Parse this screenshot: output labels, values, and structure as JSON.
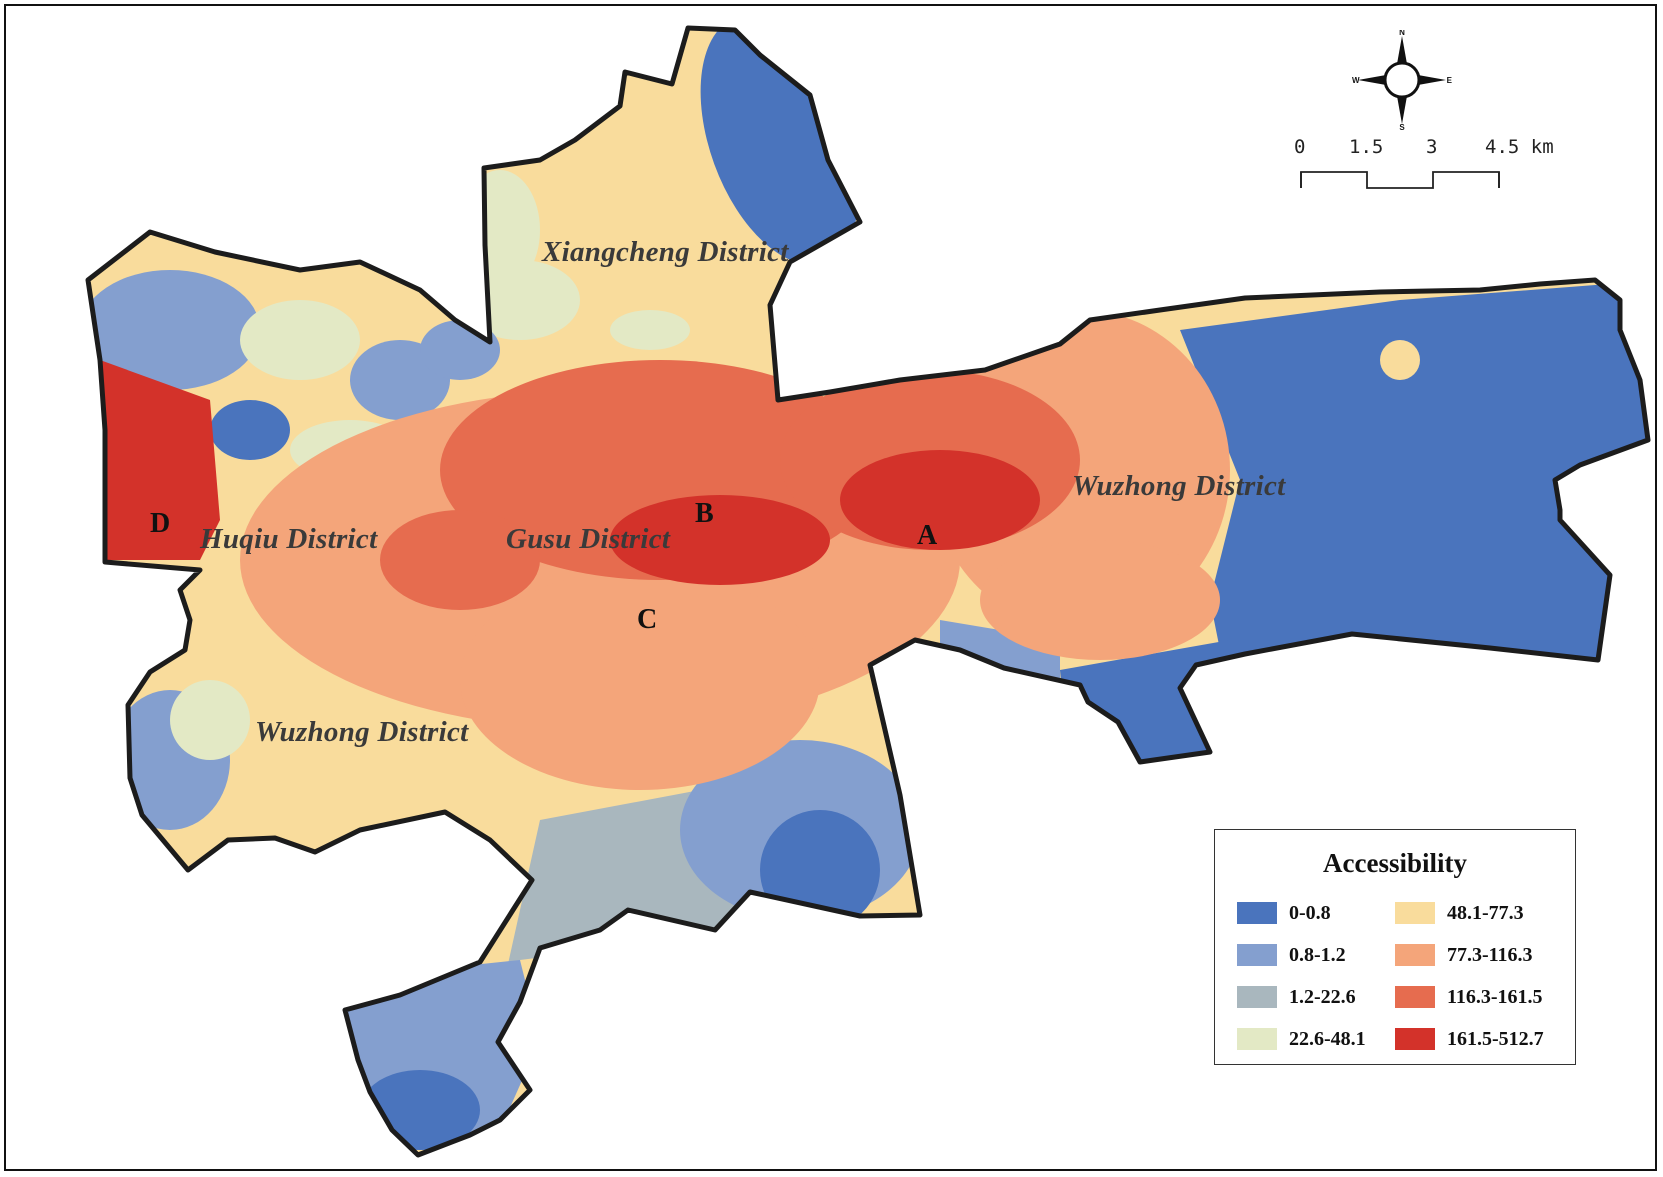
{
  "map": {
    "districts": [
      {
        "id": "xiangcheng",
        "label": "Xiangcheng District"
      },
      {
        "id": "wuzhong-east",
        "label": "Wuzhong District"
      },
      {
        "id": "huqiu",
        "label": "Huqiu District"
      },
      {
        "id": "gusu",
        "label": "Gusu District"
      },
      {
        "id": "wuzhong-south",
        "label": "Wuzhong District"
      }
    ],
    "points": [
      {
        "id": "a",
        "label": "A"
      },
      {
        "id": "b",
        "label": "B"
      },
      {
        "id": "c",
        "label": "C"
      },
      {
        "id": "d",
        "label": "D"
      }
    ]
  },
  "compass": {
    "n": "N",
    "s": "S",
    "e": "E",
    "w": "W"
  },
  "scale": {
    "ticks": [
      "0",
      "1.5",
      "3",
      "4.5 km"
    ]
  },
  "legend": {
    "title": "Accessibility",
    "classes": [
      {
        "label": "0-0.8",
        "color": "#4a74bd"
      },
      {
        "label": "0.8-1.2",
        "color": "#849fcf"
      },
      {
        "label": "1.2-22.6",
        "color": "#a9b7be"
      },
      {
        "label": "22.6-48.1",
        "color": "#e3e9c5"
      },
      {
        "label": "48.1-77.3",
        "color": "#f9dc9c"
      },
      {
        "label": "77.3-116.3",
        "color": "#f4a57a"
      },
      {
        "label": "116.3-161.5",
        "color": "#e66c4f"
      },
      {
        "label": "161.5-512.7",
        "color": "#d3322a"
      }
    ]
  }
}
